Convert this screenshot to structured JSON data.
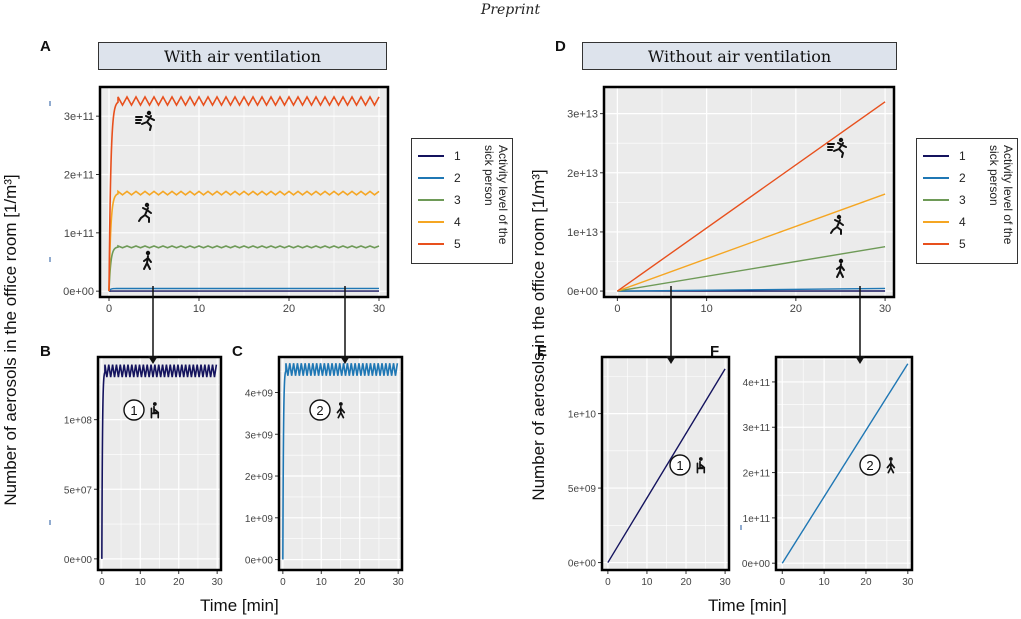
{
  "header": {
    "title": "Preprint"
  },
  "banners": {
    "left": "With air ventilation",
    "right": "Without air ventilation"
  },
  "panel_letters": [
    "A",
    "B",
    "C",
    "D",
    "E",
    "F"
  ],
  "axis_labels": {
    "y_left": "Number of aerosols in the office room [1/m³]",
    "y_right": "Number of aerosols in the office room [1/m³]",
    "x_left": "Time [min]",
    "x_right": "Time [min]"
  },
  "legends": {
    "title": "Activity level of the sick person",
    "entries": [
      "1",
      "2",
      "3",
      "4",
      "5"
    ]
  },
  "markers": {
    "one": "1",
    "two": "2"
  },
  "colors": {
    "level1": "#14135e",
    "level2": "#1f77b4",
    "level3": "#6e9a57",
    "level4": "#f5a623",
    "level5": "#e8501d",
    "panel_bg": "#ebebeb",
    "grid": "#ffffff"
  },
  "chart_data": [
    {
      "id": "A",
      "type": "line",
      "title": "With air ventilation",
      "xlabel": "Time [min]",
      "ylabel": "Number of aerosols in the office room [1/m³]",
      "xlim": [
        -1,
        31
      ],
      "ylim": [
        -10000000000.0,
        350000000000.0
      ],
      "xticks": [
        0,
        10,
        20,
        30
      ],
      "xtick_labels": [
        "0",
        "10",
        "20",
        "30"
      ],
      "yticks": [
        0,
        100000000000.0,
        200000000000.0,
        300000000000.0
      ],
      "ytick_labels": [
        "0e+00",
        "1e+11",
        "2e+11",
        "3e+11"
      ],
      "series": [
        {
          "name": "1",
          "kind": "plateau",
          "plateau": 140000000.0,
          "rise": 0.8
        },
        {
          "name": "2",
          "kind": "plateau",
          "plateau": 4600000000.0,
          "rise": 0.8
        },
        {
          "name": "3",
          "kind": "plateau",
          "plateau": 76000000000.0,
          "rise": 1.0,
          "band": 3000000000.0
        },
        {
          "name": "4",
          "kind": "plateau",
          "plateau": 168000000000.0,
          "rise": 1.0,
          "band": 6000000000.0
        },
        {
          "name": "5",
          "kind": "plateau",
          "plateau": 326000000000.0,
          "rise": 1.0,
          "band": 14000000000.0
        }
      ]
    },
    {
      "id": "B",
      "type": "line",
      "xlim": [
        -1,
        31
      ],
      "ylim": [
        -8000000.0,
        145000000.0
      ],
      "xticks": [
        0,
        10,
        20,
        30
      ],
      "xtick_labels": [
        "0",
        "10",
        "20",
        "30"
      ],
      "yticks": [
        0,
        50000000.0,
        100000000.0
      ],
      "ytick_labels": [
        "0e+00",
        "5e+07",
        "1e+08"
      ],
      "series": [
        {
          "name": "1",
          "kind": "plateau",
          "plateau": 135000000.0,
          "rise": 0.8,
          "band": 9000000.0
        }
      ]
    },
    {
      "id": "C",
      "type": "line",
      "xlim": [
        -1,
        31
      ],
      "ylim": [
        -250000000.0,
        4850000000.0
      ],
      "xticks": [
        0,
        10,
        20,
        30
      ],
      "xtick_labels": [
        "0",
        "10",
        "20",
        "30"
      ],
      "yticks": [
        0,
        1000000000.0,
        2000000000.0,
        3000000000.0,
        4000000000.0
      ],
      "ytick_labels": [
        "0e+00",
        "1e+09",
        "2e+09",
        "3e+09",
        "4e+09"
      ],
      "series": [
        {
          "name": "2",
          "kind": "plateau",
          "plateau": 4550000000.0,
          "rise": 0.8,
          "band": 300000000.0
        }
      ]
    },
    {
      "id": "D",
      "type": "line",
      "title": "Without air ventilation",
      "xlabel": "Time [min]",
      "ylabel": "Number of aerosols in the office room [1/m³]",
      "xlim": [
        -1.5,
        31
      ],
      "ylim": [
        -1000000000000.0,
        34500000000000.0
      ],
      "xticks": [
        0,
        10,
        20,
        30
      ],
      "xtick_labels": [
        "0",
        "10",
        "20",
        "30"
      ],
      "yticks": [
        0,
        10000000000000.0,
        20000000000000.0,
        30000000000000.0
      ],
      "ytick_labels": [
        "0e+00",
        "1e+13",
        "2e+13",
        "3e+13"
      ],
      "series": [
        {
          "name": "1",
          "kind": "linear",
          "x": [
            0,
            30
          ],
          "y": [
            0,
            13000000000.0
          ]
        },
        {
          "name": "2",
          "kind": "linear",
          "x": [
            0,
            30
          ],
          "y": [
            0,
            440000000000.0
          ]
        },
        {
          "name": "3",
          "kind": "linear",
          "x": [
            0,
            30
          ],
          "y": [
            0,
            7500000000000.0
          ]
        },
        {
          "name": "4",
          "kind": "linear",
          "x": [
            0,
            30
          ],
          "y": [
            0,
            16400000000000.0
          ]
        },
        {
          "name": "5",
          "kind": "linear",
          "x": [
            0,
            30
          ],
          "y": [
            0,
            32000000000000.0
          ]
        }
      ]
    },
    {
      "id": "E",
      "type": "line",
      "xlim": [
        -1.5,
        31
      ],
      "ylim": [
        -500000000.0,
        13800000000.0
      ],
      "xticks": [
        0,
        10,
        20,
        30
      ],
      "xtick_labels": [
        "0",
        "10",
        "20",
        "30"
      ],
      "yticks": [
        0,
        5000000000.0,
        10000000000.0
      ],
      "ytick_labels": [
        "0e+00",
        "5e+09",
        "1e+10"
      ],
      "series": [
        {
          "name": "1",
          "kind": "linear",
          "x": [
            0,
            30
          ],
          "y": [
            0,
            13000000000.0
          ]
        }
      ]
    },
    {
      "id": "F",
      "type": "line",
      "xlim": [
        -1.5,
        31
      ],
      "ylim": [
        -15000000000.0,
        455000000000.0
      ],
      "xticks": [
        0,
        10,
        20,
        30
      ],
      "xtick_labels": [
        "0",
        "10",
        "20",
        "30"
      ],
      "yticks": [
        0,
        100000000000.0,
        200000000000.0,
        300000000000.0,
        400000000000.0
      ],
      "ytick_labels": [
        "0e+00",
        "1e+11",
        "2e+11",
        "3e+11",
        "4e+11"
      ],
      "series": [
        {
          "name": "2",
          "kind": "linear",
          "x": [
            0,
            30
          ],
          "y": [
            0,
            440000000000.0
          ]
        }
      ]
    }
  ]
}
